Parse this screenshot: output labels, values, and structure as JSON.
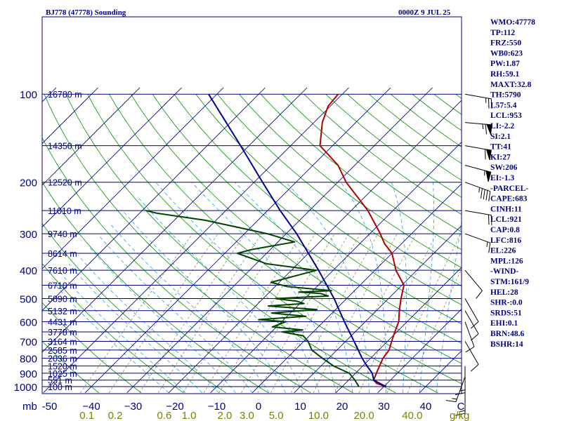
{
  "chart_data": {
    "type": "line",
    "chart_kind": "skew-T log-P sounding",
    "title": "BJ778 (47778) Sounding",
    "time": "0000Z  9 JUL 25",
    "pressure_axis": {
      "ticks": [
        100,
        200,
        300,
        400,
        500,
        600,
        700,
        800,
        900,
        1000
      ],
      "labels": [
        "100",
        "200",
        "300",
        "400",
        "500",
        "600",
        "700",
        "800",
        "900",
        "1000"
      ],
      "unit_label": "mb",
      "ylim": [
        1000,
        100
      ],
      "scale": "log"
    },
    "temperature_axis": {
      "ticks": [
        -50,
        -40,
        -30,
        -20,
        -10,
        0,
        10,
        20,
        30,
        40
      ],
      "labels": [
        "-50",
        "−40",
        "−30",
        "−20",
        "−10",
        "0",
        "10",
        "20",
        "30",
        "40"
      ],
      "trailing_label": "C",
      "xlim": [
        -50,
        50
      ]
    },
    "mixing_ratio_axis": {
      "values": [
        0.1,
        0.2,
        0.6,
        1.0,
        2.0,
        3.0,
        5.0,
        10.0,
        20.0,
        40.0
      ],
      "labels": [
        "0.1",
        "0.2",
        "0.6",
        "1.0",
        "2.0",
        "3.0",
        "5.0",
        "10.0",
        "20.0",
        "40.0"
      ],
      "unit": "g/kg"
    },
    "height_labels": [
      {
        "p": 100,
        "label": "16780 m"
      },
      {
        "p": 150,
        "label": "14350 m"
      },
      {
        "p": 200,
        "label": "12520 m"
      },
      {
        "p": 250,
        "label": "11010 m"
      },
      {
        "p": 300,
        "label": "9740 m"
      },
      {
        "p": 350,
        "label": "8614 m"
      },
      {
        "p": 400,
        "label": "7610 m"
      },
      {
        "p": 450,
        "label": "6710 m"
      },
      {
        "p": 500,
        "label": "5890 m"
      },
      {
        "p": 550,
        "label": "5132 m"
      },
      {
        "p": 600,
        "label": "4431 m"
      },
      {
        "p": 650,
        "label": "3778 m"
      },
      {
        "p": 700,
        "label": "3164 m"
      },
      {
        "p": 750,
        "label": "2585 m"
      },
      {
        "p": 800,
        "label": "2036 m"
      },
      {
        "p": 850,
        "label": "1520 m"
      },
      {
        "p": 900,
        "label": "1025 m"
      },
      {
        "p": 950,
        "label": "551 m"
      },
      {
        "p": 1000,
        "label": "100 m"
      }
    ],
    "series": [
      {
        "color": "#b00000",
        "points": [
          [
            1000,
            30.5
          ],
          [
            975,
            27.5
          ],
          [
            950,
            26.0
          ],
          [
            925,
            25.5
          ],
          [
            900,
            25.0
          ],
          [
            850,
            24.0
          ],
          [
            800,
            23.0
          ],
          [
            750,
            22.5
          ],
          [
            700,
            21.0
          ],
          [
            650,
            19.5
          ],
          [
            600,
            18.0
          ],
          [
            550,
            15.5
          ],
          [
            500,
            13.0
          ],
          [
            450,
            10.5
          ],
          [
            400,
            5.0
          ],
          [
            350,
            0.0
          ],
          [
            325,
            -4.0
          ],
          [
            300,
            -7.5
          ],
          [
            250,
            -16.0
          ],
          [
            200,
            -28.0
          ],
          [
            175,
            -34.0
          ],
          [
            150,
            -43.0
          ],
          [
            125,
            -48.0
          ],
          [
            110,
            -50.5
          ],
          [
            100,
            -51.0
          ]
        ]
      },
      {
        "color": "#000090",
        "points": [
          [
            1000,
            30.5
          ],
          [
            950,
            26.0
          ],
          [
            900,
            24.0
          ],
          [
            850,
            21.0
          ],
          [
            800,
            18.0
          ],
          [
            700,
            12.0
          ],
          [
            600,
            5.0
          ],
          [
            500,
            -3.0
          ],
          [
            400,
            -13.5
          ],
          [
            300,
            -27.5
          ],
          [
            250,
            -37.0
          ],
          [
            200,
            -48.0
          ],
          [
            150,
            -62.0
          ],
          [
            120,
            -73.0
          ],
          [
            100,
            -82.0
          ]
        ]
      },
      {
        "color": "#004400",
        "points": [
          [
            1000,
            24.0
          ],
          [
            950,
            21.5
          ],
          [
            900,
            18.5
          ],
          [
            850,
            13.0
          ],
          [
            800,
            8.5
          ],
          [
            750,
            4.0
          ],
          [
            700,
            1.0
          ],
          [
            670,
            -1.5
          ],
          [
            650,
            -7.5
          ],
          [
            640,
            -3.0
          ],
          [
            625,
            -11.0
          ],
          [
            600,
            -9.0
          ],
          [
            590,
            -16.0
          ],
          [
            575,
            -5.5
          ],
          [
            560,
            -14.5
          ],
          [
            545,
            -4.5
          ],
          [
            530,
            -17.0
          ],
          [
            520,
            -9.0
          ],
          [
            510,
            -11.5
          ],
          [
            500,
            -17.0
          ],
          [
            490,
            -5.0
          ],
          [
            480,
            -7.5
          ],
          [
            475,
            -13.0
          ],
          [
            470,
            -5.5
          ],
          [
            455,
            -17.0
          ],
          [
            440,
            -22.0
          ],
          [
            400,
            -14.0
          ],
          [
            380,
            -27.5
          ],
          [
            350,
            -37.0
          ],
          [
            340,
            -34.5
          ],
          [
            320,
            -26.0
          ],
          [
            300,
            -34.5
          ],
          [
            270,
            -52.5
          ],
          [
            255,
            -66.0
          ],
          [
            250,
            -69.0
          ]
        ]
      }
    ],
    "wind_barbs": [
      {
        "p": 100,
        "dir": 100,
        "spd": 25
      },
      {
        "p": 125,
        "dir": 95,
        "spd": 65
      },
      {
        "p": 150,
        "dir": 100,
        "spd": 60
      },
      {
        "p": 175,
        "dir": 105,
        "spd": 55
      },
      {
        "p": 200,
        "dir": 110,
        "spd": 45
      },
      {
        "p": 250,
        "dir": 100,
        "spd": 20
      },
      {
        "p": 300,
        "dir": 110,
        "spd": 15
      },
      {
        "p": 400,
        "dir": 140,
        "spd": 10
      },
      {
        "p": 500,
        "dir": 150,
        "spd": 10
      },
      {
        "p": 550,
        "dir": 150,
        "spd": 10
      },
      {
        "p": 600,
        "dir": 160,
        "spd": 10
      },
      {
        "p": 700,
        "dir": 150,
        "spd": 10
      },
      {
        "p": 850,
        "dir": 180,
        "spd": 15
      },
      {
        "p": 925,
        "dir": 200,
        "spd": 15
      },
      {
        "p": 1000,
        "dir": 180,
        "spd": 15
      }
    ]
  },
  "indices": [
    "WMO:47778",
    "TP:112",
    "FRZ:550",
    "WB0:623",
    "PW:1.87",
    "RH:59.1",
    "MAXT:32.8",
    "TH:5790",
    "L57:5.4",
    "LCL:953",
    "LI:-2.2",
    "SI:2.1",
    "TT:41",
    "KI:27",
    "SW:206",
    "EI:-1.3",
    "-PARCEL-",
    "CAPE:683",
    "CINH:11",
    "LCL:921",
    "CAP:0.8",
    "LFC:816",
    "EL:226",
    "MPL:126",
    "-WIND-",
    "STM:161/9",
    "HEL:28",
    "SHR-:0.0",
    "SRDS:51",
    "EHI:0.1",
    "BRN:48.6",
    "BSHR:14"
  ],
  "colors": {
    "frame": "#00007e",
    "pressure_lines": "#00007e",
    "isotherms": "#00007e",
    "dry_adiabats": "#009000",
    "moist_adiabats": "#2aa4d8",
    "mixing_ratio": "#8a8a50",
    "labels": "#00007e",
    "mixing_labels": "#7e7e00"
  }
}
